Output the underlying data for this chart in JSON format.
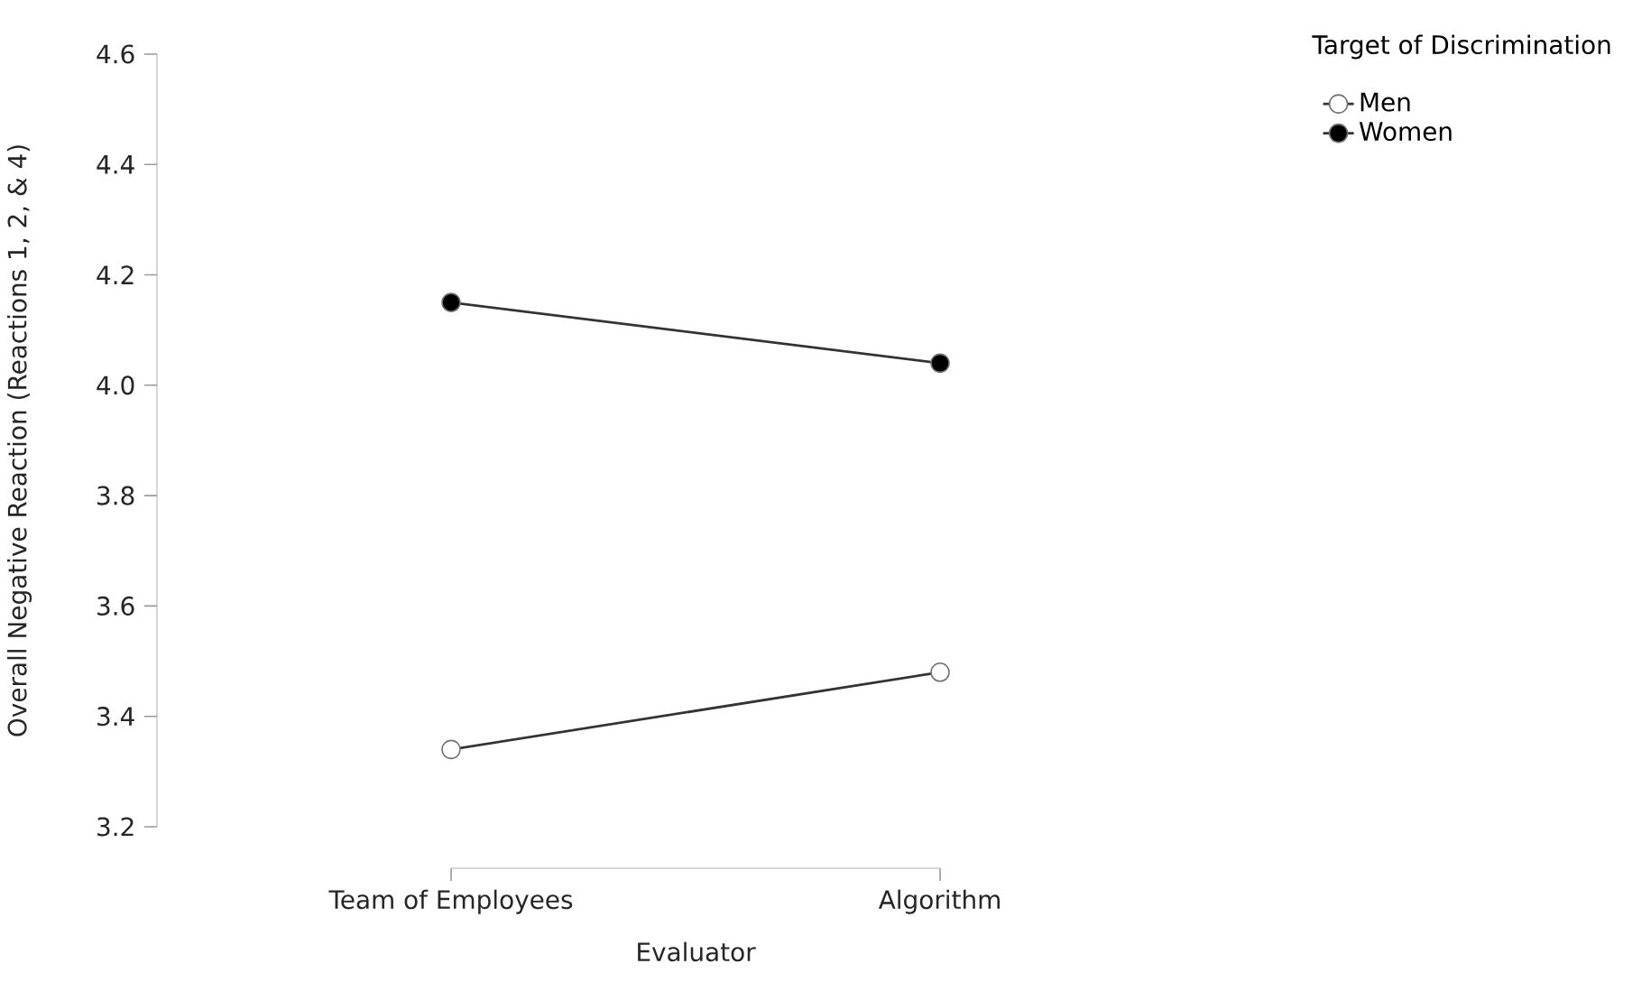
{
  "chart_data": {
    "type": "line",
    "xlabel": "Evaluator",
    "ylabel": "Overall Negative Reaction (Reactions 1, 2, & 4)",
    "legend_title": "Target of Discrimination",
    "categories": [
      "Team of Employees",
      "Algorithm"
    ],
    "series": [
      {
        "name": "Men",
        "color": "#ffffff",
        "values": [
          3.34,
          3.48
        ]
      },
      {
        "name": "Women",
        "color": "#000000",
        "values": [
          4.15,
          4.04
        ]
      }
    ],
    "ylim": [
      3.2,
      4.6
    ],
    "yticks": [
      3.2,
      3.4,
      3.6,
      3.8,
      {
        "value": 4,
        "label": "4.0"
      },
      4.2,
      4.4,
      4.6
    ],
    "grid": false,
    "legend": "top right",
    "marker": "circle",
    "line_style": "solid"
  }
}
